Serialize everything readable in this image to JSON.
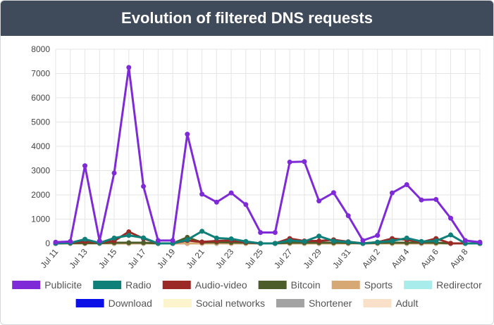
{
  "header": {
    "title": "Evolution of filtered DNS requests"
  },
  "chart_data": {
    "type": "line",
    "title": "Evolution of filtered DNS requests",
    "xlabel": "",
    "ylabel": "",
    "ylim": [
      0,
      8000
    ],
    "yticks": [
      0,
      1000,
      2000,
      3000,
      4000,
      5000,
      6000,
      7000,
      8000
    ],
    "grid": true,
    "legend_position": "bottom",
    "x": [
      "Jul 11",
      "Jul 12",
      "Jul 13",
      "Jul 14",
      "Jul 15",
      "Jul 16",
      "Jul 17",
      "Jul 18",
      "Jul 19",
      "Jul 20",
      "Jul 21",
      "Jul 22",
      "Jul 23",
      "Jul 24",
      "Jul 25",
      "Jul 26",
      "Jul 27",
      "Jul 28",
      "Jul 29",
      "Jul 30",
      "Jul 31",
      "Aug 1",
      "Aug 2",
      "Aug 3",
      "Aug 4",
      "Aug 5",
      "Aug 6",
      "Aug 7",
      "Aug 8",
      "Aug 9"
    ],
    "xtick_labels": [
      "Jul 11",
      "Jul 13",
      "Jul 15",
      "Jul 17",
      "Jul 19",
      "Jul 21",
      "Jul 23",
      "Jul 25",
      "Jul 27",
      "Jul 29",
      "Jul 31",
      "Aug 2",
      "Aug 4",
      "Aug 6",
      "Aug 8"
    ],
    "series": [
      {
        "name": "Publicite",
        "color": "#7e2ad6",
        "values": [
          50,
          80,
          3200,
          100,
          2900,
          7250,
          2350,
          120,
          120,
          4500,
          2030,
          1700,
          2080,
          1600,
          450,
          450,
          3350,
          3370,
          1750,
          2090,
          1140,
          120,
          330,
          2080,
          2420,
          1790,
          1810,
          1040,
          120,
          50
        ]
      },
      {
        "name": "Radio",
        "color": "#0f7f7a",
        "values": [
          0,
          20,
          170,
          20,
          220,
          330,
          230,
          0,
          0,
          150,
          500,
          220,
          190,
          80,
          0,
          0,
          120,
          80,
          300,
          100,
          60,
          0,
          50,
          100,
          220,
          80,
          100,
          350,
          0,
          0
        ]
      },
      {
        "name": "Audio-video",
        "color": "#9b2a26",
        "values": [
          0,
          20,
          80,
          30,
          100,
          480,
          200,
          0,
          0,
          120,
          60,
          100,
          120,
          50,
          0,
          0,
          200,
          100,
          100,
          150,
          70,
          0,
          50,
          200,
          150,
          50,
          200,
          0,
          0,
          0
        ]
      },
      {
        "name": "Bitcoin",
        "color": "#4c5d2a",
        "values": [
          0,
          10,
          10,
          10,
          30,
          30,
          30,
          0,
          0,
          250,
          40,
          50,
          40,
          30,
          0,
          0,
          30,
          30,
          30,
          30,
          20,
          0,
          20,
          30,
          30,
          30,
          30,
          0,
          0,
          0
        ]
      },
      {
        "name": "Sports",
        "color": "#d6a873",
        "values": [
          0,
          0,
          0,
          0,
          0,
          0,
          0,
          0,
          0,
          0,
          0,
          0,
          0,
          0,
          0,
          0,
          0,
          0,
          0,
          0,
          0,
          0,
          0,
          0,
          0,
          0,
          0,
          0,
          0,
          0
        ]
      },
      {
        "name": "Redirector",
        "color": "#a9ecec",
        "values": [
          0,
          0,
          0,
          0,
          0,
          0,
          0,
          0,
          0,
          0,
          0,
          0,
          0,
          0,
          0,
          0,
          0,
          0,
          0,
          0,
          0,
          0,
          0,
          0,
          0,
          0,
          0,
          0,
          0,
          0
        ]
      },
      {
        "name": "Download",
        "color": "#0a10e6",
        "values": [
          0,
          0,
          0,
          0,
          0,
          0,
          0,
          0,
          0,
          0,
          0,
          0,
          0,
          0,
          0,
          0,
          0,
          0,
          0,
          0,
          0,
          0,
          0,
          0,
          0,
          0,
          0,
          0,
          0,
          0
        ]
      },
      {
        "name": "Social networks",
        "color": "#fbf4cd",
        "values": [
          0,
          0,
          0,
          0,
          0,
          0,
          0,
          0,
          0,
          0,
          0,
          0,
          0,
          0,
          0,
          0,
          0,
          0,
          0,
          0,
          0,
          0,
          0,
          0,
          0,
          0,
          0,
          0,
          0,
          0
        ]
      },
      {
        "name": "Shortener",
        "color": "#a3a3a3",
        "values": [
          0,
          0,
          0,
          0,
          0,
          0,
          0,
          0,
          0,
          0,
          0,
          0,
          0,
          0,
          0,
          0,
          0,
          0,
          0,
          0,
          0,
          0,
          0,
          0,
          0,
          0,
          0,
          0,
          0,
          0
        ]
      },
      {
        "name": "Adult",
        "color": "#f8e1c8",
        "values": [
          0,
          0,
          0,
          0,
          0,
          0,
          0,
          0,
          0,
          0,
          0,
          0,
          0,
          0,
          0,
          0,
          0,
          0,
          0,
          0,
          0,
          0,
          0,
          0,
          0,
          0,
          0,
          0,
          0,
          0
        ]
      }
    ]
  }
}
